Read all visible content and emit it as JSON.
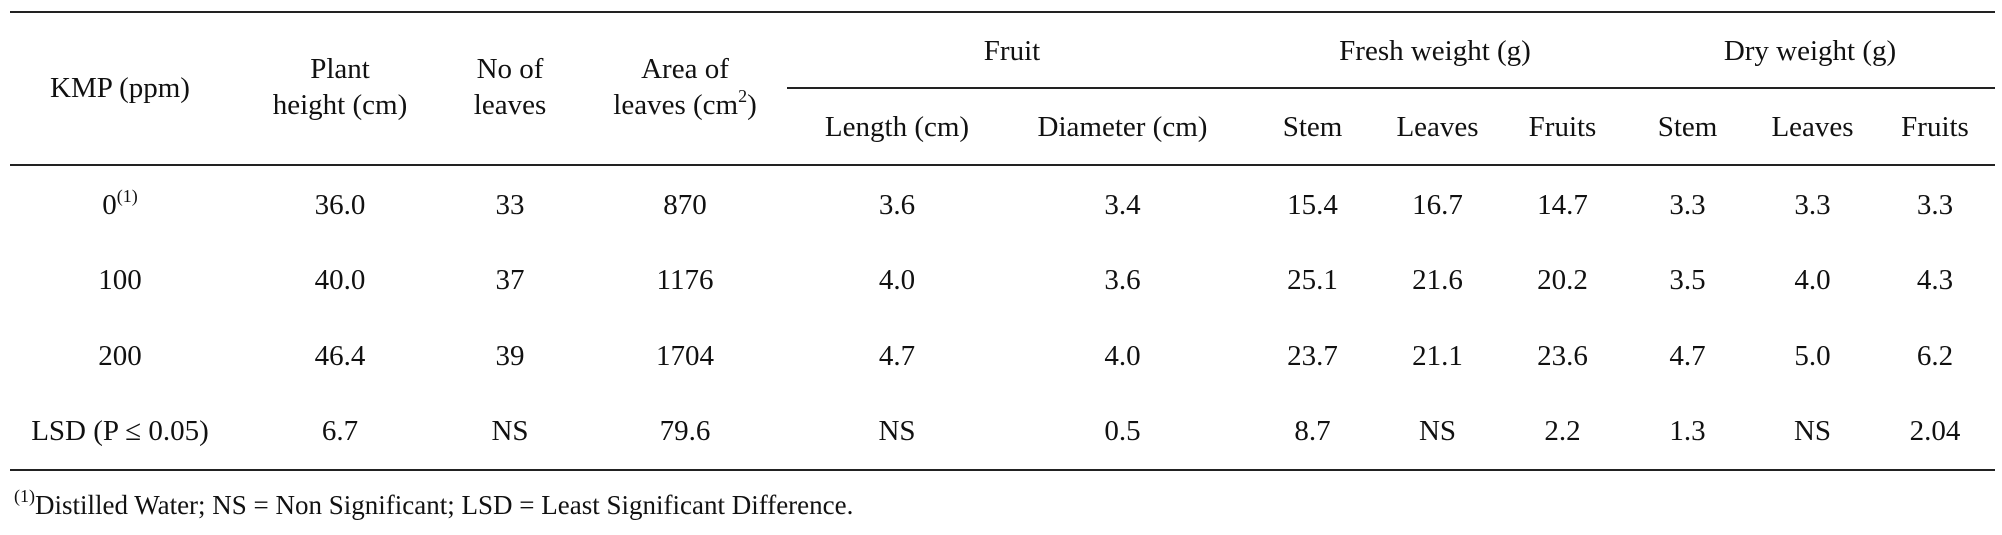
{
  "table": {
    "headers": {
      "kmp": "KMP (ppm)",
      "plant_height_l1": "Plant",
      "plant_height_l2": "height (cm)",
      "no_leaves_l1": "No of",
      "no_leaves_l2": "leaves",
      "area_l1": "Area of",
      "area_l2": "leaves (cm",
      "area_sup": "2",
      "area_close": ")",
      "fruit_group": "Fruit",
      "fresh_group": "Fresh weight (g)",
      "dry_group": "Dry weight (g)",
      "fruit_length": "Length (cm)",
      "fruit_diameter": "Diameter (cm)",
      "fresh_stem": "Stem",
      "fresh_leaves": "Leaves",
      "fresh_fruits": "Fruits",
      "dry_stem": "Stem",
      "dry_leaves": "Leaves",
      "dry_fruits": "Fruits"
    },
    "rows": [
      {
        "kmp": "0",
        "kmp_sup": "(1)",
        "plant_height": "36.0",
        "no_leaves": "33",
        "area": "870",
        "length": "3.6",
        "diameter": "3.4",
        "fresh_stem": "15.4",
        "fresh_leaves": "16.7",
        "fresh_fruits": "14.7",
        "dry_stem": "3.3",
        "dry_leaves": "3.3",
        "dry_fruits": "3.3"
      },
      {
        "kmp": "100",
        "plant_height": "40.0",
        "no_leaves": "37",
        "area": "1176",
        "length": "4.0",
        "diameter": "3.6",
        "fresh_stem": "25.1",
        "fresh_leaves": "21.6",
        "fresh_fruits": "20.2",
        "dry_stem": "3.5",
        "dry_leaves": "4.0",
        "dry_fruits": "4.3"
      },
      {
        "kmp": "200",
        "plant_height": "46.4",
        "no_leaves": "39",
        "area": "1704",
        "length": "4.7",
        "diameter": "4.0",
        "fresh_stem": "23.7",
        "fresh_leaves": "21.1",
        "fresh_fruits": "23.6",
        "dry_stem": "4.7",
        "dry_leaves": "5.0",
        "dry_fruits": "6.2"
      },
      {
        "kmp": "LSD (P ≤ 0.05)",
        "plant_height": "6.7",
        "no_leaves": "NS",
        "area": "79.6",
        "length": "NS",
        "diameter": "0.5",
        "fresh_stem": "8.7",
        "fresh_leaves": "NS",
        "fresh_fruits": "2.2",
        "dry_stem": "1.3",
        "dry_leaves": "NS",
        "dry_fruits": "2.04"
      }
    ],
    "footnote_sup": "(1)",
    "footnote": "Distilled Water; NS = Non Significant; LSD = Least Significant Difference."
  }
}
